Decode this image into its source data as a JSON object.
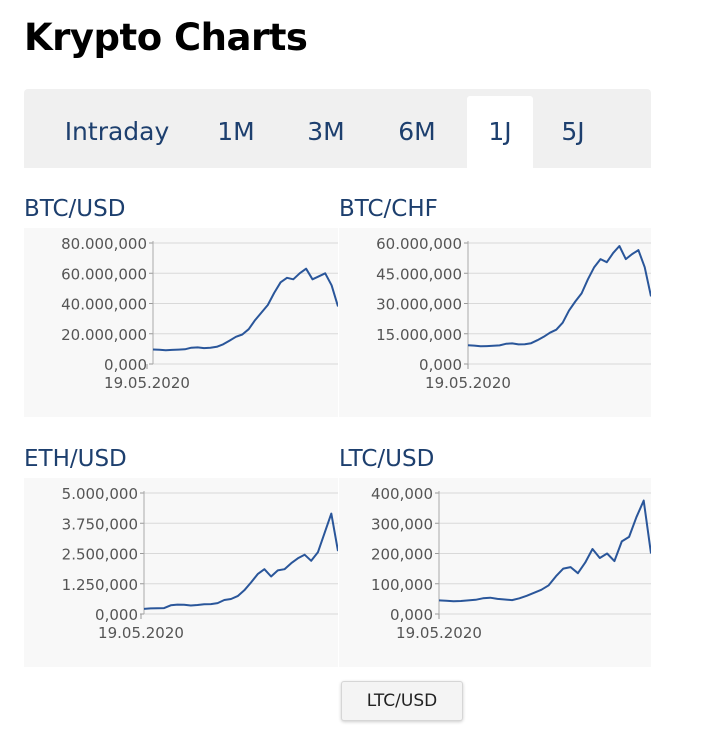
{
  "page": {
    "title": "Krypto Charts"
  },
  "tabs": [
    {
      "label": "Intraday",
      "active": false
    },
    {
      "label": "1M",
      "active": false
    },
    {
      "label": "3M",
      "active": false
    },
    {
      "label": "6M",
      "active": false
    },
    {
      "label": "1J",
      "active": true
    },
    {
      "label": "5J",
      "active": false
    }
  ],
  "tooltip": {
    "text": "LTC/USD"
  },
  "chart_data": [
    {
      "type": "line",
      "title": "BTC/USD",
      "xlabel": "",
      "ylabel": "",
      "x_tick_label": "19.05.2020",
      "y_ticks": [
        "0,000",
        "20.000,000",
        "40.000,000",
        "60.000,000",
        "80.000,000"
      ],
      "ylim": [
        0,
        80000
      ],
      "grid": true,
      "line_color": "#2a569a",
      "series": [
        {
          "values": [
            9600,
            9400,
            9100,
            9300,
            9500,
            9700,
            10800,
            11000,
            10500,
            10700,
            11400,
            13000,
            15500,
            18000,
            19500,
            23000,
            29000,
            34000,
            39000,
            47000,
            54000,
            57000,
            56000,
            60000,
            63000,
            56000,
            58000,
            60000,
            52000,
            38000
          ]
        }
      ]
    },
    {
      "type": "line",
      "title": "BTC/CHF",
      "xlabel": "",
      "ylabel": "",
      "x_tick_label": "19.05.2020",
      "y_ticks": [
        "0,000",
        "15.000,000",
        "30.000,000",
        "45.000,000",
        "60.000,000"
      ],
      "ylim": [
        0,
        60000
      ],
      "grid": true,
      "line_color": "#2a569a",
      "series": [
        {
          "values": [
            9300,
            9100,
            8800,
            8900,
            9000,
            9200,
            10000,
            10200,
            9700,
            9800,
            10300,
            11800,
            13500,
            15500,
            17000,
            20500,
            26500,
            31000,
            35000,
            42000,
            48000,
            52000,
            50500,
            55000,
            58500,
            52000,
            54500,
            56500,
            48000,
            33500
          ]
        }
      ]
    },
    {
      "type": "line",
      "title": "ETH/USD",
      "xlabel": "",
      "ylabel": "",
      "x_tick_label": "19.05.2020",
      "y_ticks": [
        "0,000",
        "1.250,000",
        "2.500,000",
        "3.750,000",
        "5.000,000"
      ],
      "ylim": [
        0,
        5000
      ],
      "grid": true,
      "line_color": "#2a569a",
      "series": [
        {
          "values": [
            210,
            230,
            240,
            245,
            360,
            390,
            380,
            350,
            370,
            400,
            410,
            450,
            580,
            620,
            740,
            980,
            1300,
            1650,
            1850,
            1550,
            1800,
            1850,
            2100,
            2300,
            2450,
            2200,
            2550,
            3350,
            4150,
            2600
          ]
        }
      ]
    },
    {
      "type": "line",
      "title": "LTC/USD",
      "xlabel": "",
      "ylabel": "",
      "x_tick_label": "19.05.2020",
      "y_ticks": [
        "0,000",
        "100,000",
        "200,000",
        "300,000",
        "400,000"
      ],
      "ylim": [
        0,
        400
      ],
      "grid": true,
      "line_color": "#2a569a",
      "series": [
        {
          "values": [
            45,
            44,
            42,
            43,
            45,
            47,
            52,
            54,
            50,
            48,
            46,
            52,
            60,
            70,
            80,
            95,
            125,
            150,
            155,
            135,
            170,
            215,
            185,
            200,
            175,
            240,
            255,
            320,
            375,
            200
          ]
        }
      ]
    }
  ]
}
